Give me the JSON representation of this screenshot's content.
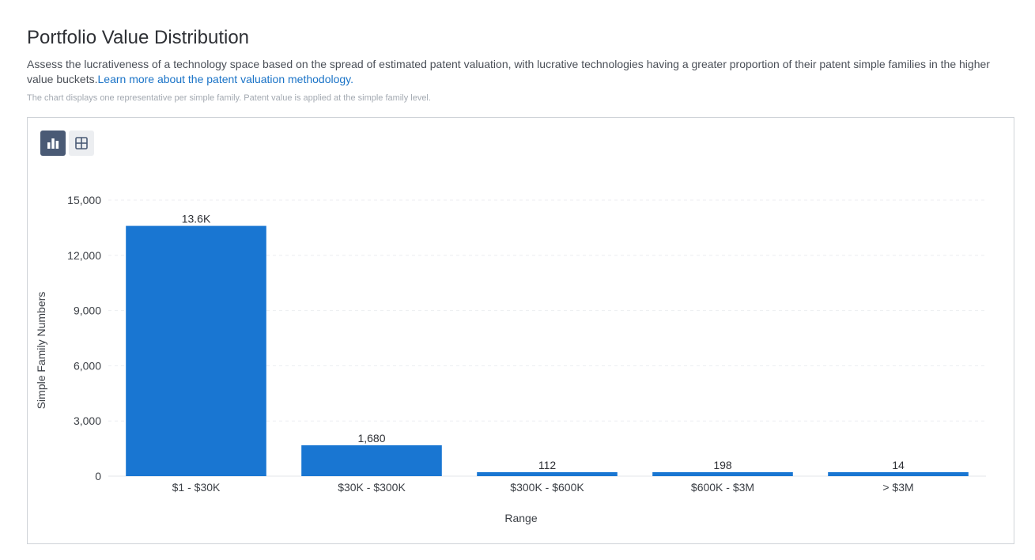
{
  "header": {
    "title": "Portfolio Value Distribution",
    "description": "Assess the lucrativeness of a technology space based on the spread of estimated patent valuation, with lucrative technologies having a greater proportion of their patent simple families in the higher value buckets.",
    "learn_more_link": "Learn more about the patent valuation methodology.",
    "note": "The chart displays one representative per simple family. Patent value is applied at the simple family level."
  },
  "toolbar": {
    "chart_view_icon": "bar-chart-icon",
    "table_view_icon": "table-grid-icon",
    "active_view": "chart"
  },
  "colors": {
    "bar": "#1976d2",
    "active_toggle": "#4a5a75",
    "link": "#1a73c7"
  },
  "chart_data": {
    "type": "bar",
    "categories": [
      "$1 - $30K",
      "$30K - $300K",
      "$300K - $600K",
      "$600K - $3M",
      "> $3M"
    ],
    "values": [
      13600,
      1680,
      112,
      198,
      14
    ],
    "data_labels": [
      "13.6K",
      "1,680",
      "112",
      "198",
      "14"
    ],
    "title": "",
    "xlabel": "Range",
    "ylabel": "Simple Family Numbers",
    "ylim": [
      0,
      15000
    ],
    "yticks": [
      0,
      3000,
      6000,
      9000,
      12000,
      15000
    ],
    "ytick_labels": [
      "0",
      "3,000",
      "6,000",
      "9,000",
      "12,000",
      "15,000"
    ],
    "grid": true,
    "legend": "none"
  }
}
